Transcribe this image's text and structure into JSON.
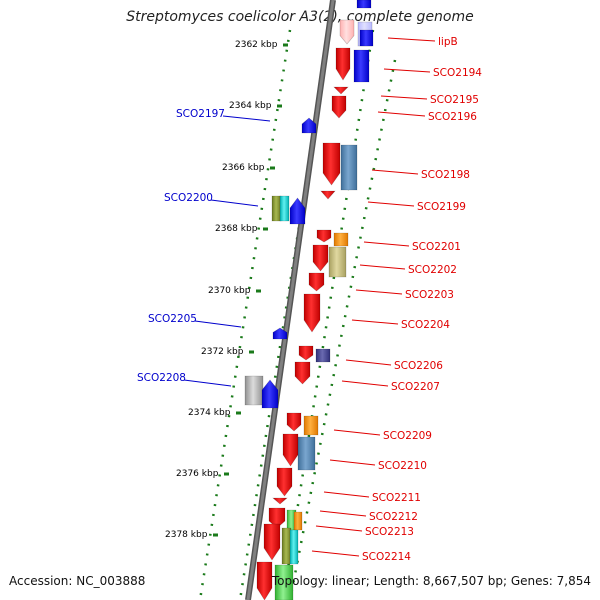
{
  "title": "Streptomyces coelicolor A3(2), complete genome",
  "footer": {
    "accession": "Accession: NC_003888",
    "stats": "Topology: linear; Length: 8,667,507 bp; Genes: 7,854"
  },
  "colors": {
    "backbone": "#808080",
    "ticks": "#1a7a1a",
    "right_label": "#e00000",
    "left_label": "#0000cc"
  },
  "ticks": [
    "2362 kbp",
    "2364 kbp",
    "2366 kbp",
    "2368 kbp",
    "2370 kbp",
    "2372 kbp",
    "2374 kbp",
    "2376 kbp",
    "2378 kbp"
  ],
  "right_labels": [
    "lipB",
    "SCO2194",
    "SCO2195",
    "SCO2196",
    "SCO2198",
    "SCO2199",
    "SCO2201",
    "SCO2202",
    "SCO2203",
    "SCO2204",
    "SCO2206",
    "SCO2207",
    "SCO2209",
    "SCO2210",
    "SCO2211",
    "SCO2212",
    "SCO2213",
    "SCO2214"
  ],
  "left_labels": [
    "SCO2197",
    "SCO2200",
    "SCO2205",
    "SCO2208"
  ]
}
